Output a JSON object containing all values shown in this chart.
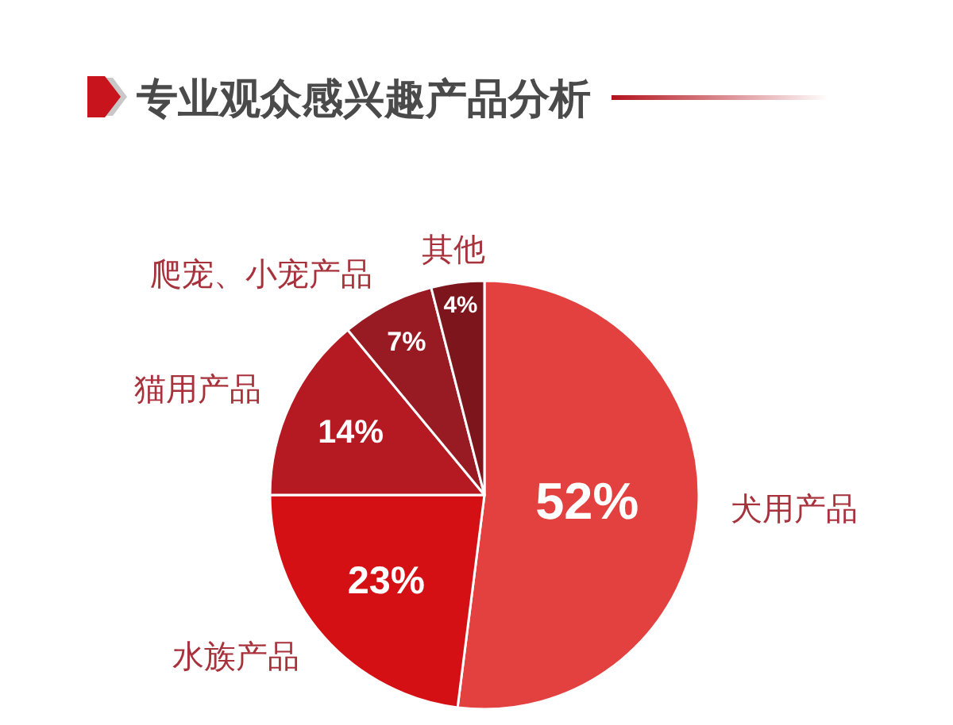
{
  "chart_data": {
    "type": "pie",
    "title": "专业观众感兴趣产品分析",
    "categories": [
      "犬用产品",
      "水族产品",
      "猫用产品",
      "爬宠、小宠产品",
      "其他"
    ],
    "values": [
      52,
      23,
      14,
      7,
      4
    ],
    "value_labels": [
      "52%",
      "23%",
      "14%",
      "7%",
      "4%"
    ],
    "colors": [
      "#e2413f",
      "#d51015",
      "#b51a22",
      "#981a23",
      "#7d151c"
    ]
  }
}
